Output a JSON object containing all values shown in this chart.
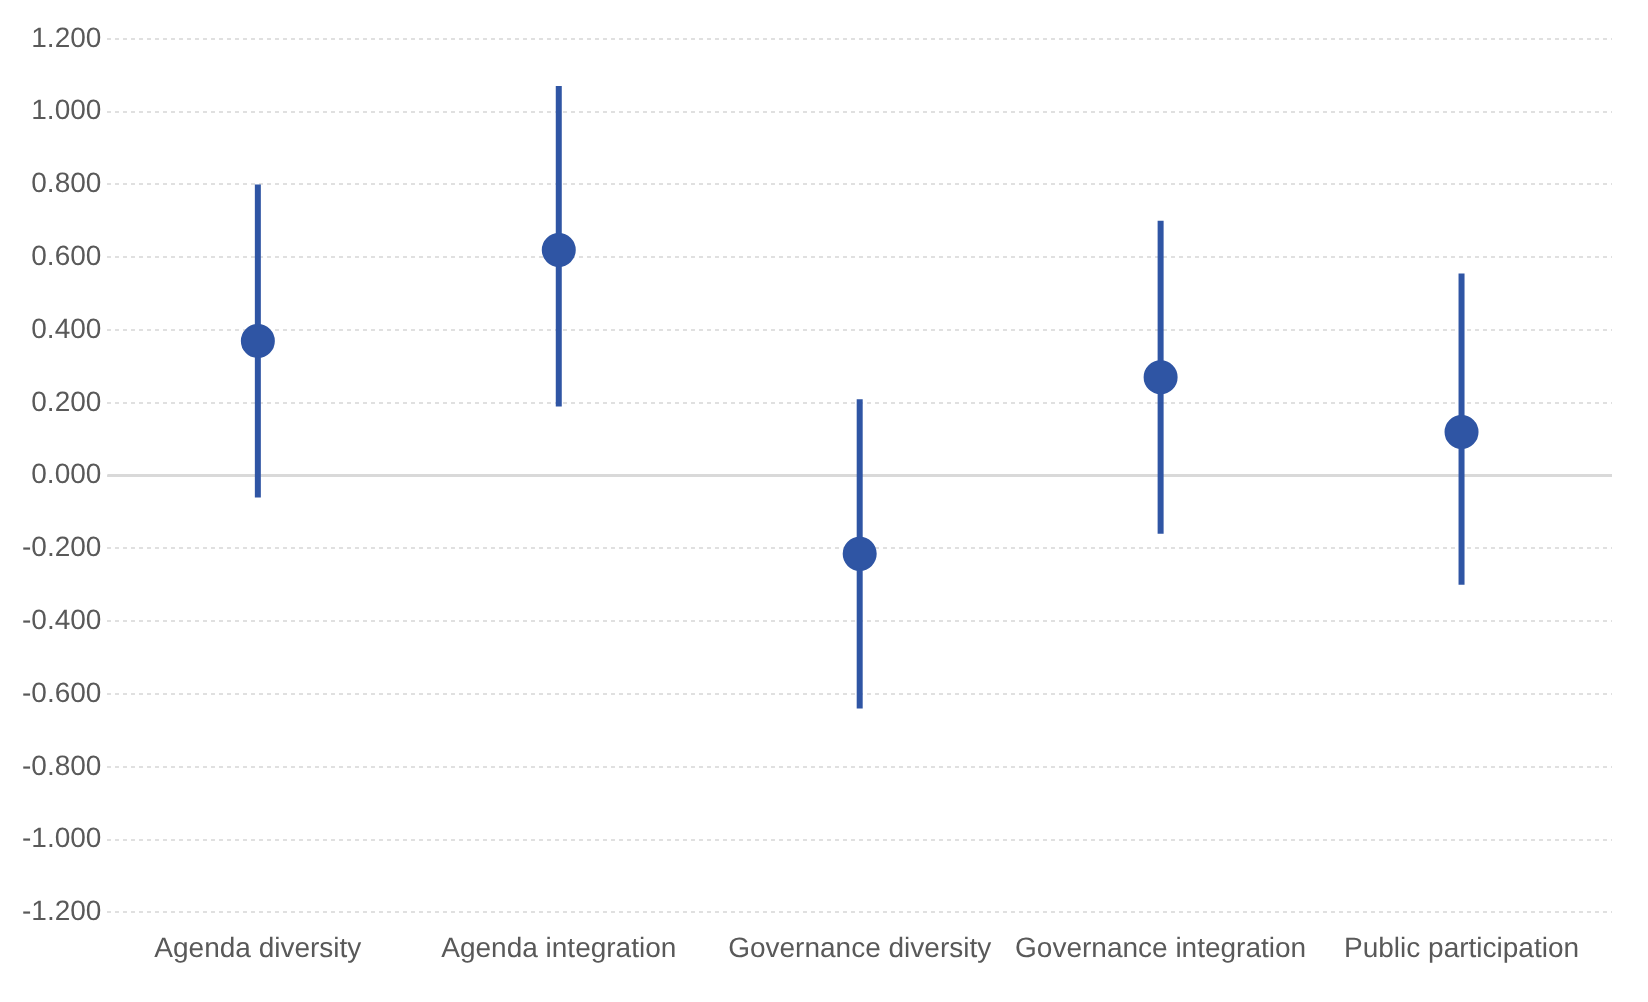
{
  "chart_data": {
    "type": "scatter",
    "categories": [
      "Agenda diversity",
      "Agenda integration",
      "Governance diversity",
      "Governance integration",
      "Public participation"
    ],
    "series": [
      {
        "color": "#2f55a4",
        "values": [
          0.37,
          0.62,
          -0.215,
          0.27,
          0.12
        ],
        "errors": [
          [
            -0.06,
            0.8
          ],
          [
            0.19,
            1.07
          ],
          [
            -0.64,
            0.21
          ],
          [
            -0.16,
            0.7
          ],
          [
            -0.3,
            0.555
          ]
        ]
      }
    ],
    "ylim": [
      -1.2,
      1.2
    ],
    "yticks": [
      {
        "value": -1.2,
        "label": "-1.200"
      },
      {
        "value": -1,
        "label": "-1.000"
      },
      {
        "value": -0.8,
        "label": "-0.800"
      },
      {
        "value": -0.6,
        "label": "-0.600"
      },
      {
        "value": -0.4,
        "label": "-0.400"
      },
      {
        "value": -0.2,
        "label": "-0.200"
      },
      {
        "value": 0,
        "label": "0.000"
      },
      {
        "value": 0.2,
        "label": "0.200"
      },
      {
        "value": 0.4,
        "label": "0.400"
      },
      {
        "value": 0.6,
        "label": "0.600"
      },
      {
        "value": 0.8,
        "label": "0.800"
      },
      {
        "value": 1,
        "label": "1.000"
      },
      {
        "value": 1.2,
        "label": "1.200"
      }
    ],
    "ref_lines": [
      {
        "axis": "y",
        "value": 0,
        "color": "#d9d9d9"
      }
    ],
    "grid": "y",
    "marker": "circle",
    "legend": false
  }
}
